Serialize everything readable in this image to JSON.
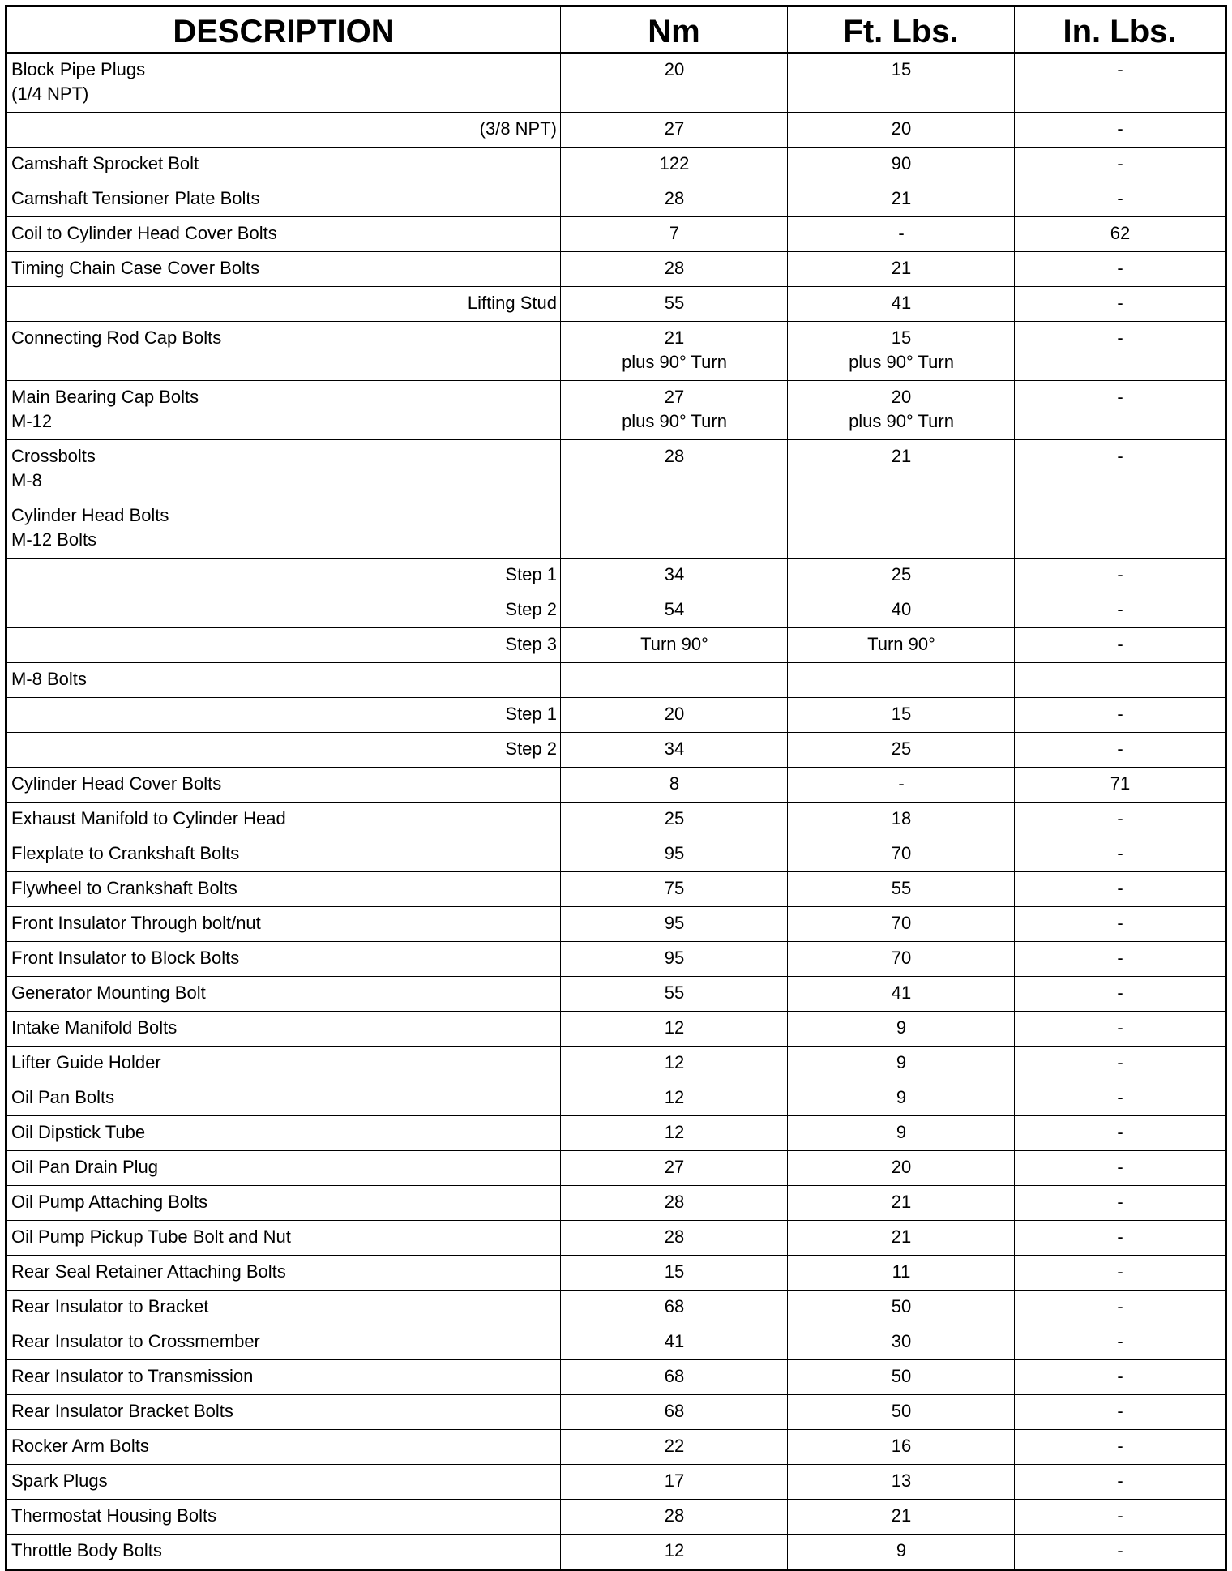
{
  "headers": [
    "DESCRIPTION",
    "Nm",
    "Ft. Lbs.",
    "In. Lbs."
  ],
  "rows": [
    {
      "desc": "Block Pipe Plugs\n(1/4 NPT)",
      "align": "left",
      "nm": "20",
      "ft": "15",
      "in": "-"
    },
    {
      "desc": "(3/8 NPT)",
      "align": "right",
      "nm": "27",
      "ft": "20",
      "in": "-"
    },
    {
      "desc": "Camshaft Sprocket Bolt",
      "align": "left",
      "nm": "122",
      "ft": "90",
      "in": "-"
    },
    {
      "desc": "Camshaft Tensioner Plate Bolts",
      "align": "left",
      "nm": "28",
      "ft": "21",
      "in": "-"
    },
    {
      "desc": "Coil to Cylinder Head Cover Bolts",
      "align": "left",
      "nm": "7",
      "ft": "-",
      "in": "62"
    },
    {
      "desc": "Timing Chain Case Cover Bolts",
      "align": "left",
      "nm": "28",
      "ft": "21",
      "in": "-"
    },
    {
      "desc": "Lifting Stud",
      "align": "right",
      "nm": "55",
      "ft": "41",
      "in": "-"
    },
    {
      "desc": "Connecting Rod Cap Bolts",
      "align": "left",
      "nm": "21\nplus 90° Turn",
      "ft": "15\nplus 90° Turn",
      "in": "-",
      "tall": true
    },
    {
      "desc": "Main Bearing Cap Bolts\nM-12",
      "align": "left",
      "nm": "27\nplus 90° Turn",
      "ft": "20\nplus 90° Turn",
      "in": "-"
    },
    {
      "desc": "Crossbolts\nM-8",
      "align": "left",
      "nm": "28",
      "ft": "21",
      "in": "-"
    },
    {
      "desc": "Cylinder Head Bolts\nM-12 Bolts",
      "align": "left",
      "nm": "",
      "ft": "",
      "in": ""
    },
    {
      "desc": "Step 1",
      "align": "right",
      "nm": "34",
      "ft": "25",
      "in": "-"
    },
    {
      "desc": "Step 2",
      "align": "right",
      "nm": "54",
      "ft": "40",
      "in": "-"
    },
    {
      "desc": "Step 3",
      "align": "right",
      "nm": "Turn 90°",
      "ft": "Turn 90°",
      "in": "-"
    },
    {
      "desc": "M-8 Bolts",
      "align": "left",
      "nm": "",
      "ft": "",
      "in": ""
    },
    {
      "desc": "Step 1",
      "align": "right",
      "nm": "20",
      "ft": "15",
      "in": "-"
    },
    {
      "desc": "Step 2",
      "align": "right",
      "nm": "34",
      "ft": "25",
      "in": "-"
    },
    {
      "desc": "Cylinder Head Cover Bolts",
      "align": "left",
      "nm": "8",
      "ft": "-",
      "in": "71"
    },
    {
      "desc": "Exhaust Manifold to Cylinder Head",
      "align": "left",
      "nm": "25",
      "ft": "18",
      "in": "-"
    },
    {
      "desc": "Flexplate to Crankshaft Bolts",
      "align": "left",
      "nm": "95",
      "ft": "70",
      "in": "-"
    },
    {
      "desc": "Flywheel to Crankshaft Bolts",
      "align": "left",
      "nm": "75",
      "ft": "55",
      "in": "-"
    },
    {
      "desc": "Front Insulator Through bolt/nut",
      "align": "left",
      "nm": "95",
      "ft": "70",
      "in": "-"
    },
    {
      "desc": "Front Insulator to Block Bolts",
      "align": "left",
      "nm": "95",
      "ft": "70",
      "in": "-"
    },
    {
      "desc": "Generator Mounting Bolt",
      "align": "left",
      "nm": "55",
      "ft": "41",
      "in": "-"
    },
    {
      "desc": "Intake Manifold Bolts",
      "align": "left",
      "nm": "12",
      "ft": "9",
      "in": "-"
    },
    {
      "desc": "Lifter Guide Holder",
      "align": "left",
      "nm": "12",
      "ft": "9",
      "in": "-"
    },
    {
      "desc": "Oil Pan Bolts",
      "align": "left",
      "nm": "12",
      "ft": "9",
      "in": "-"
    },
    {
      "desc": "Oil Dipstick Tube",
      "align": "left",
      "nm": "12",
      "ft": "9",
      "in": "-"
    },
    {
      "desc": "Oil Pan Drain Plug",
      "align": "left",
      "nm": "27",
      "ft": "20",
      "in": "-"
    },
    {
      "desc": "Oil Pump Attaching Bolts",
      "align": "left",
      "nm": "28",
      "ft": "21",
      "in": "-"
    },
    {
      "desc": "Oil Pump Pickup Tube Bolt and Nut",
      "align": "left",
      "nm": "28",
      "ft": "21",
      "in": "-"
    },
    {
      "desc": "Rear Seal Retainer Attaching Bolts",
      "align": "left",
      "nm": "15",
      "ft": "11",
      "in": "-"
    },
    {
      "desc": "Rear Insulator to Bracket",
      "align": "left",
      "nm": "68",
      "ft": "50",
      "in": "-"
    },
    {
      "desc": "Rear Insulator to Crossmember",
      "align": "left",
      "nm": "41",
      "ft": "30",
      "in": "-"
    },
    {
      "desc": "Rear Insulator to Transmission",
      "align": "left",
      "nm": "68",
      "ft": "50",
      "in": "-"
    },
    {
      "desc": "Rear Insulator Bracket Bolts",
      "align": "left",
      "nm": "68",
      "ft": "50",
      "in": "-"
    },
    {
      "desc": "Rocker Arm Bolts",
      "align": "left",
      "nm": "22",
      "ft": "16",
      "in": "-"
    },
    {
      "desc": "Spark Plugs",
      "align": "left",
      "nm": "17",
      "ft": "13",
      "in": "-"
    },
    {
      "desc": "Thermostat Housing Bolts",
      "align": "left",
      "nm": "28",
      "ft": "21",
      "in": "-"
    },
    {
      "desc": "Throttle Body Bolts",
      "align": "left",
      "nm": "12",
      "ft": "9",
      "in": "-"
    }
  ]
}
